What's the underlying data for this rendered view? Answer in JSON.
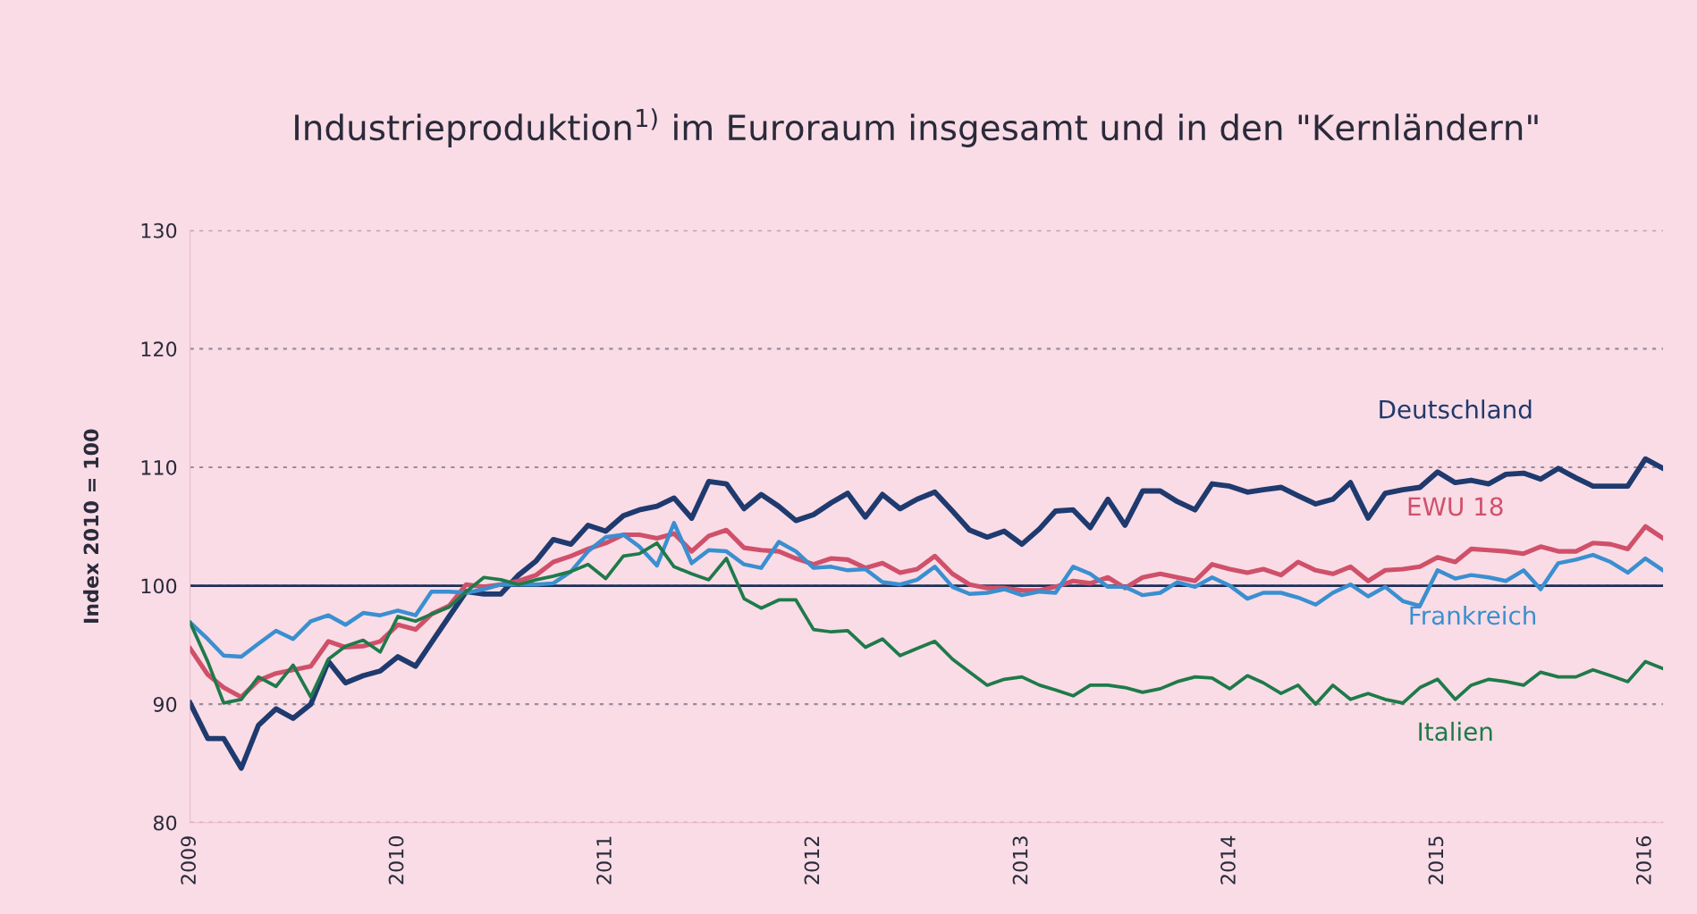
{
  "chart_data": {
    "type": "line",
    "title": "Industrieproduktion$^{1)}$ im Euroraum insgesamt und in den \"Kernländern\"",
    "ylabel": "Index 2010 = 100",
    "x": [
      "2009-01",
      "2009-02",
      "2009-03",
      "2009-04",
      "2009-05",
      "2009-06",
      "2009-07",
      "2009-08",
      "2009-09",
      "2009-10",
      "2009-11",
      "2009-12",
      "2010-01",
      "2010-02",
      "2010-03",
      "2010-04",
      "2010-05",
      "2010-06",
      "2010-07",
      "2010-08",
      "2010-09",
      "2010-10",
      "2010-11",
      "2010-12",
      "2011-01",
      "2011-02",
      "2011-03",
      "2011-04",
      "2011-05",
      "2011-06",
      "2011-07",
      "2011-08",
      "2011-09",
      "2011-10",
      "2011-11",
      "2011-12",
      "2012-01",
      "2012-02",
      "2012-03",
      "2012-04",
      "2012-05",
      "2012-06",
      "2012-07",
      "2012-08",
      "2012-09",
      "2012-10",
      "2012-11",
      "2012-12",
      "2013-01",
      "2013-02",
      "2013-03",
      "2013-04",
      "2013-05",
      "2013-06",
      "2013-07",
      "2013-08",
      "2013-09",
      "2013-10",
      "2013-11",
      "2013-12",
      "2014-01",
      "2014-02",
      "2014-03",
      "2014-04",
      "2014-05",
      "2014-06",
      "2014-07",
      "2014-08",
      "2014-09",
      "2014-10",
      "2014-11",
      "2014-12",
      "2015-01",
      "2015-02",
      "2015-03",
      "2015-04",
      "2015-05",
      "2015-06",
      "2015-07",
      "2015-08",
      "2015-09",
      "2015-10",
      "2015-11",
      "2015-12",
      "2016-01",
      "2016-02"
    ],
    "series": [
      {
        "name": "Deutschland",
        "color": "#1f3a6e",
        "values": [
          90.1,
          87.1,
          87.1,
          84.6,
          88.2,
          89.6,
          88.8,
          90,
          93.6,
          91.8,
          92.4,
          92.8,
          94,
          93.2,
          95.2,
          97.4,
          99.5,
          99.3,
          99.3,
          100.9,
          102.1,
          103.9,
          103.5,
          105.1,
          104.6,
          105.9,
          106.4,
          106.7,
          107.4,
          105.7,
          108.8,
          108.6,
          106.5,
          107.7,
          106.7,
          105.5,
          106,
          107,
          107.8,
          105.8,
          107.7,
          106.5,
          107.3,
          107.9,
          106.3,
          104.7,
          104.1,
          104.6,
          103.5,
          104.8,
          106.3,
          106.4,
          104.9,
          107.3,
          105.1,
          108,
          108,
          107.1,
          106.4,
          108.6,
          108.4,
          107.9,
          108.1,
          108.3,
          107.6,
          106.9,
          107.3,
          108.7,
          105.7,
          107.8,
          108.1,
          108.3,
          109.6,
          108.7,
          108.9,
          108.6,
          109.4,
          109.5,
          109,
          109.9,
          109.1,
          108.4,
          108.4,
          108.4,
          110.7,
          109.9
        ]
      },
      {
        "name": "EWU 18",
        "color": "#d0506a",
        "values": [
          94.7,
          92.5,
          91.4,
          90.6,
          92,
          92.6,
          92.9,
          93.2,
          95.3,
          94.8,
          94.9,
          95.3,
          96.7,
          96.3,
          97.6,
          98.3,
          100.1,
          99.9,
          100.1,
          100.4,
          100.9,
          102,
          102.5,
          103.1,
          103.6,
          104.3,
          104.3,
          104,
          104.4,
          102.9,
          104.2,
          104.7,
          103.2,
          103,
          102.9,
          102.3,
          101.8,
          102.3,
          102.2,
          101.5,
          101.9,
          101.1,
          101.4,
          102.5,
          101,
          100.1,
          99.8,
          99.8,
          99.6,
          99.6,
          99.9,
          100.4,
          100.2,
          100.7,
          99.8,
          100.7,
          101,
          100.7,
          100.4,
          101.8,
          101.4,
          101.1,
          101.4,
          100.9,
          102,
          101.3,
          101,
          101.6,
          100.4,
          101.3,
          101.4,
          101.6,
          102.4,
          102,
          103.1,
          103,
          102.9,
          102.7,
          103.3,
          102.9,
          102.9,
          103.6,
          103.5,
          103.1,
          105,
          104
        ]
      },
      {
        "name": "Frankreich",
        "color": "#3a8fd0",
        "values": [
          96.9,
          95.5,
          94.1,
          94,
          95.1,
          96.2,
          95.5,
          97,
          97.5,
          96.7,
          97.7,
          97.5,
          97.9,
          97.5,
          99.5,
          99.5,
          99.4,
          99.7,
          100.1,
          100.1,
          100.1,
          100.2,
          101.2,
          102.9,
          104.1,
          104.3,
          103.3,
          101.7,
          105.3,
          101.9,
          103,
          102.9,
          101.8,
          101.5,
          103.7,
          102.9,
          101.5,
          101.6,
          101.3,
          101.4,
          100.3,
          100.1,
          100.5,
          101.6,
          99.9,
          99.3,
          99.4,
          99.7,
          99.2,
          99.5,
          99.4,
          101.6,
          101,
          99.9,
          99.9,
          99.2,
          99.4,
          100.3,
          99.9,
          100.7,
          100,
          98.9,
          99.4,
          99.4,
          99,
          98.4,
          99.4,
          100.1,
          99.1,
          99.9,
          98.7,
          98.3,
          101.3,
          100.6,
          100.9,
          100.7,
          100.4,
          101.3,
          99.7,
          101.9,
          102.2,
          102.6,
          102,
          101.1,
          102.3,
          101.3
        ]
      },
      {
        "name": "Italien",
        "color": "#1f7a4a",
        "values": [
          96.9,
          93.6,
          90.1,
          90.4,
          92.3,
          91.5,
          93.3,
          90.6,
          93.8,
          94.9,
          95.4,
          94.4,
          97.4,
          97,
          97.6,
          98.2,
          99.5,
          100.7,
          100.5,
          100.1,
          100.5,
          100.8,
          101.2,
          101.8,
          100.6,
          102.5,
          102.7,
          103.6,
          101.6,
          101,
          100.5,
          102.3,
          98.9,
          98.1,
          98.8,
          98.8,
          96.3,
          96.1,
          96.2,
          94.8,
          95.5,
          94.1,
          94.7,
          95.3,
          93.8,
          92.7,
          91.6,
          92.1,
          92.3,
          91.6,
          91.2,
          90.7,
          91.6,
          91.6,
          91.4,
          91,
          91.3,
          91.9,
          92.3,
          92.2,
          91.3,
          92.4,
          91.8,
          90.9,
          91.6,
          90,
          91.6,
          90.4,
          90.9,
          90.4,
          90.1,
          91.4,
          92.1,
          90.4,
          91.6,
          92.1,
          91.9,
          91.6,
          92.7,
          92.3,
          92.3,
          92.9,
          92.4,
          91.9,
          93.6,
          93
        ]
      }
    ],
    "xlim": [
      "2009-01",
      "2016-02"
    ],
    "xticks": [
      "2009",
      "2010",
      "2011",
      "2012",
      "2013",
      "2014",
      "2015",
      "2016"
    ],
    "ylim": [
      80,
      130
    ],
    "yticks": [
      80,
      90,
      100,
      110,
      120,
      130
    ],
    "grid": "y",
    "legend": false,
    "marker": "none",
    "line_style": "solid",
    "ref_lines": [
      {
        "axis": "y",
        "value": 100,
        "color": "#1f2f55"
      }
    ]
  }
}
